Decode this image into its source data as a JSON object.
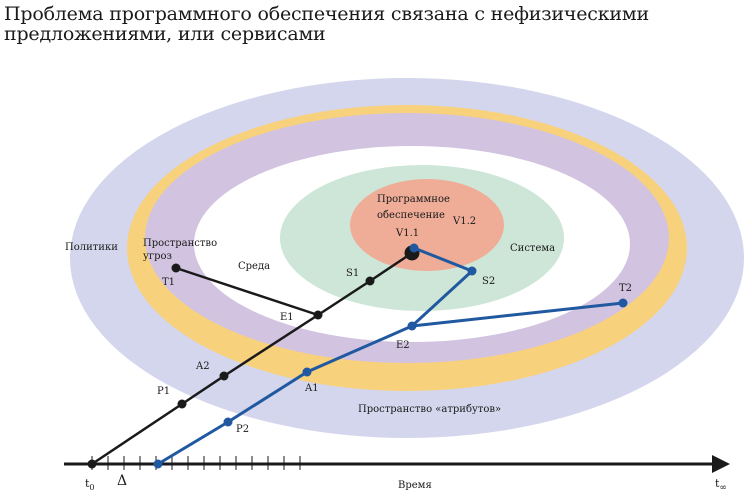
{
  "title": {
    "line1": "Проблема программного обеспечения связана с нефизическими",
    "line2": "предложениями, или сервисами"
  },
  "regions": {
    "policies": "Политики",
    "threats_line1": "Пространство",
    "threats_line2": "угроз",
    "attributes": "Пространство «атрибутов»",
    "environment": "Среда",
    "system": "Система",
    "software_line1": "Программное",
    "software_line2": "обеспечение"
  },
  "versions": {
    "v11": "V1.1",
    "v12": "V1.2"
  },
  "black_path": {
    "points": [
      "T1",
      "E1",
      "S1",
      "A2",
      "P1"
    ],
    "T1": "T1",
    "E1": "E1",
    "S1": "S1",
    "A2": "A2",
    "P1": "P1"
  },
  "blue_path": {
    "points": [
      "S2",
      "E2",
      "T2",
      "A1",
      "P2"
    ],
    "S2": "S2",
    "E2": "E2",
    "T2": "T2",
    "A1": "A1",
    "P2": "P2"
  },
  "time_axis": {
    "label": "Время",
    "t0": "t",
    "t0_sub": "0",
    "tinf": "t",
    "tinf_sub": "∞",
    "delta": "Δ"
  },
  "colors": {
    "policies": "#d3d6ec",
    "attributes": "#f8d17c",
    "threats": "#d2c4e0",
    "environment": "#ffffff",
    "system": "#cde6d8",
    "software": "#efad98",
    "black_path": "#1a1a1a",
    "blue_path": "#2059a0"
  }
}
